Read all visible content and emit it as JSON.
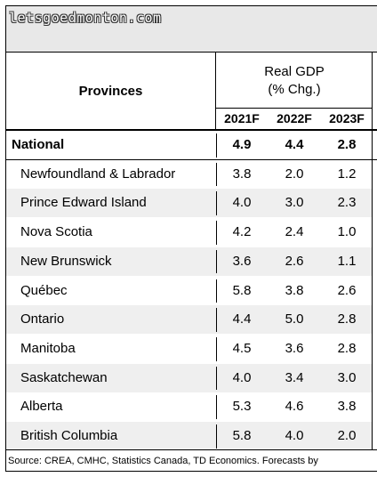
{
  "watermark": "letsgoedmonton.com",
  "header": {
    "provinces_label": "Provinces",
    "gdp_line1": "Real GDP",
    "gdp_line2": "(% Chg.)",
    "years": [
      "2021F",
      "2022F",
      "2023F"
    ]
  },
  "rows": [
    {
      "name": "National",
      "values": [
        "4.9",
        "4.4",
        "2.8"
      ]
    },
    {
      "name": "Newfoundland & Labrador",
      "values": [
        "3.8",
        "2.0",
        "1.2"
      ]
    },
    {
      "name": "Prince Edward Island",
      "values": [
        "4.0",
        "3.0",
        "2.3"
      ]
    },
    {
      "name": "Nova Scotia",
      "values": [
        "4.2",
        "2.4",
        "1.0"
      ]
    },
    {
      "name": "New Brunswick",
      "values": [
        "3.6",
        "2.6",
        "1.1"
      ]
    },
    {
      "name": "Québec",
      "values": [
        "5.8",
        "3.8",
        "2.6"
      ]
    },
    {
      "name": "Ontario",
      "values": [
        "4.4",
        "5.0",
        "2.8"
      ]
    },
    {
      "name": "Manitoba",
      "values": [
        "4.5",
        "3.6",
        "2.8"
      ]
    },
    {
      "name": "Saskatchewan",
      "values": [
        "4.0",
        "3.4",
        "3.0"
      ]
    },
    {
      "name": "Alberta",
      "values": [
        "5.3",
        "4.6",
        "3.8"
      ]
    },
    {
      "name": "British Columbia",
      "values": [
        "5.8",
        "4.0",
        "2.0"
      ]
    }
  ],
  "source": "Source: CREA, CMHC, Statistics Canada, TD Economics. Forecasts by"
}
